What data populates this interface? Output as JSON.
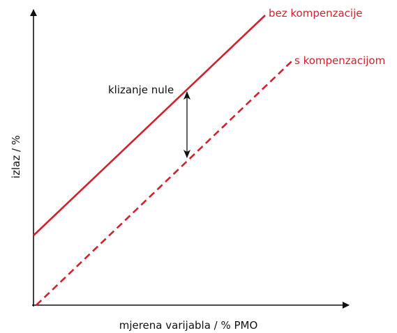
{
  "labels": {
    "line_without": "bez kompenzacije",
    "line_with": "s kompenzacijom",
    "drift": "klizanje nule",
    "y_axis": "izlaz / %",
    "x_axis": "mjerena varijabla / % PMO"
  }
}
